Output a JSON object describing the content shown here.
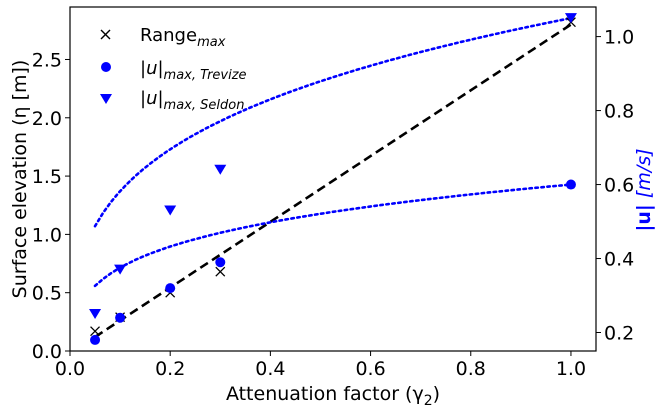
{
  "chart_data": {
    "type": "scatter",
    "xlabel": "Attenuation factor (γ",
    "xlabel_sub": "2",
    "xlabel_close": ")",
    "ylabel_left": "Surface elevation (η [m])",
    "ylabel_right_bold": "|u|",
    "ylabel_right_rest": "[m/s]",
    "xlim": [
      0.0,
      1.05
    ],
    "ylim_left": [
      0.0,
      2.95
    ],
    "ylim_right": [
      0.15,
      1.08
    ],
    "x_ticks": [
      0.0,
      0.2,
      0.4,
      0.6,
      0.8,
      1.0
    ],
    "x_tick_labels": [
      "0.0",
      "0.2",
      "0.4",
      "0.6",
      "0.8",
      "1.0"
    ],
    "y_left_ticks": [
      0.0,
      0.5,
      1.0,
      1.5,
      2.0,
      2.5
    ],
    "y_left_tick_labels": [
      "0.0",
      "0.5",
      "1.0",
      "1.5",
      "2.0",
      "2.5"
    ],
    "y_right_ticks": [
      0.2,
      0.4,
      0.6,
      0.8,
      1.0
    ],
    "y_right_tick_labels": [
      "0.2",
      "0.4",
      "0.6",
      "0.8",
      "1.0"
    ],
    "legend_position": "top-left",
    "grid": false,
    "colors": {
      "range": "#000000",
      "trevize": "#0000ff",
      "seldon": "#0000ff",
      "right_label": "#0000ff"
    },
    "series": [
      {
        "name": "Range",
        "name_sub": "max",
        "axis": "left",
        "marker": "x",
        "x": [
          0.05,
          0.1,
          0.2,
          0.3,
          1.0
        ],
        "y": [
          0.17,
          0.29,
          0.5,
          0.68,
          2.82
        ]
      },
      {
        "name": "|u|",
        "name_sub": "max, Trevize",
        "axis": "right",
        "marker": "circle",
        "x": [
          0.05,
          0.1,
          0.2,
          0.3,
          1.0
        ],
        "y": [
          0.18,
          0.24,
          0.32,
          0.39,
          0.6
        ]
      },
      {
        "name": "|u|",
        "name_sub": "max, Seldon",
        "axis": "right",
        "marker": "triangle-down",
        "x": [
          0.05,
          0.1,
          0.2,
          0.3,
          1.0
        ],
        "y": [
          0.25,
          0.37,
          0.53,
          0.64,
          1.05
        ]
      }
    ],
    "fits": [
      {
        "series": "Range",
        "style": "dashed",
        "color": "#000000",
        "axis": "left",
        "x": [
          0.05,
          1.0
        ],
        "y": [
          0.12,
          2.8
        ]
      },
      {
        "series": "|u| max, Trevize",
        "style": "dotted",
        "color": "#0000ff",
        "axis": "right",
        "a": 0.6,
        "b": 0.2037
      },
      {
        "series": "|u| max, Seldon",
        "style": "dotted",
        "color": "#0000ff",
        "axis": "right",
        "a": 1.05,
        "b": 0.2562
      }
    ]
  }
}
